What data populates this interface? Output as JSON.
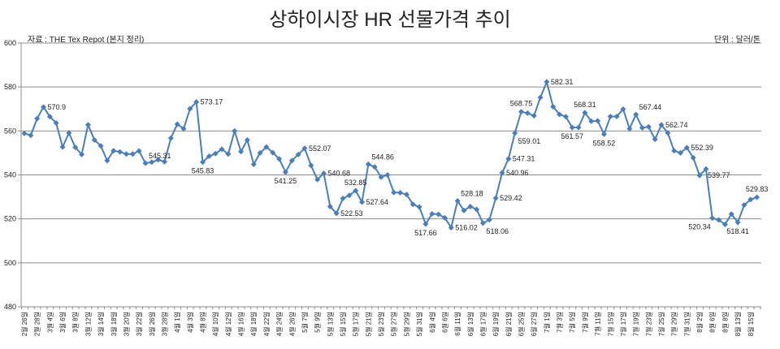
{
  "chart_data": {
    "type": "line",
    "title": "상하이시장 HR 선물가격 추이",
    "source": "자료 : THE Tex Repot (본지 정리)",
    "unit": "단위 : 달러/톤",
    "xlabel": "",
    "ylabel": "",
    "ylim": [
      480,
      600
    ],
    "yticks": [
      "480",
      "500",
      "520",
      "540",
      "560",
      "580",
      "600"
    ],
    "grid": true,
    "series_color": "#4a7ebb",
    "x_tick_labels": [
      "2월 26일",
      "2월 28일",
      "3월 4일",
      "3월 6일",
      "3월 8일",
      "3월 12일",
      "3월 14일",
      "3월 18일",
      "3월 20일",
      "3월 22일",
      "3월 26일",
      "3월 28일",
      "4월 1일",
      "4월 3일",
      "4월 8일",
      "4월 10일",
      "4월 12일",
      "4월 16일",
      "4월 18일",
      "4월 22일",
      "4월 24일",
      "4월 26일",
      "5월 7일",
      "5월 9일",
      "5월 13일",
      "5월 15일",
      "5월 17일",
      "5월 21일",
      "5월 23일",
      "5월 27일",
      "5월 29일",
      "5월 31일",
      "6월 4일",
      "6월 6일",
      "6월 11일",
      "6월 13일",
      "6월 17일",
      "6월 19일",
      "6월 21일",
      "6월 25일",
      "6월 27일",
      "7월 1일",
      "7월 3일",
      "7월 5일",
      "7월 9일",
      "7월 11일",
      "7월 15일",
      "7월 17일",
      "7월 19일",
      "7월 23일",
      "7월 25일",
      "7월 29일",
      "7월 31일",
      "8월 2일",
      "8월 6일",
      "8월 8일",
      "8월 13일",
      "8월 15일"
    ],
    "x_tick_every": 2,
    "values": [
      558.9,
      558.0,
      565.6,
      570.9,
      566.5,
      563.6,
      552.7,
      559.1,
      552.5,
      549.3,
      562.8,
      555.9,
      553.2,
      546.5,
      551.0,
      550.5,
      549.5,
      549.5,
      550.9,
      545.31,
      545.8,
      546.9,
      546.0,
      556.7,
      563.1,
      561.0,
      570.1,
      573.17,
      545.83,
      548.5,
      549.7,
      551.7,
      549.5,
      560.0,
      550.6,
      555.9,
      544.8,
      550.0,
      552.7,
      550.1,
      547.3,
      541.25,
      546.5,
      549.3,
      552.07,
      544.3,
      537.9,
      540.68,
      525.6,
      522.53,
      529.3,
      530.7,
      532.85,
      527.64,
      544.86,
      543.6,
      539.0,
      540.0,
      532.0,
      531.9,
      531.1,
      526.6,
      525.4,
      517.66,
      522.3,
      522.1,
      520.5,
      516.02,
      528.18,
      523.8,
      525.6,
      524.3,
      518.06,
      519.6,
      529.42,
      540.96,
      547.31,
      559.01,
      568.75,
      568.1,
      566.9,
      575.2,
      582.31,
      571.0,
      567.5,
      566.5,
      561.57,
      561.6,
      568.31,
      564.4,
      564.6,
      558.52,
      566.6,
      566.6,
      569.9,
      561.0,
      567.44,
      561.4,
      561.9,
      556.2,
      562.74,
      559.1,
      551.0,
      550.0,
      552.39,
      547.8,
      539.77,
      542.7,
      520.34,
      519.5,
      517.5,
      522.2,
      518.41,
      526.3,
      528.8,
      529.83
    ],
    "data_labels": [
      {
        "index": 3,
        "text": "570.9",
        "pos": "right"
      },
      {
        "index": 19,
        "text": "545.31",
        "pos": "above-right"
      },
      {
        "index": 27,
        "text": "573.17",
        "pos": "right"
      },
      {
        "index": 28,
        "text": "545.83",
        "pos": "below"
      },
      {
        "index": 41,
        "text": "541.25",
        "pos": "below"
      },
      {
        "index": 44,
        "text": "552.07",
        "pos": "right"
      },
      {
        "index": 47,
        "text": "540.68",
        "pos": "right"
      },
      {
        "index": 49,
        "text": "522.53",
        "pos": "right"
      },
      {
        "index": 52,
        "text": "532.85",
        "pos": "above"
      },
      {
        "index": 53,
        "text": "527.64",
        "pos": "right"
      },
      {
        "index": 54,
        "text": "544.86",
        "pos": "above-right"
      },
      {
        "index": 63,
        "text": "517.66",
        "pos": "below"
      },
      {
        "index": 67,
        "text": "516.02",
        "pos": "right"
      },
      {
        "index": 68,
        "text": "528.18",
        "pos": "above-right"
      },
      {
        "index": 72,
        "text": "518.06",
        "pos": "below-right"
      },
      {
        "index": 74,
        "text": "529.42",
        "pos": "right"
      },
      {
        "index": 75,
        "text": "540.96",
        "pos": "right"
      },
      {
        "index": 76,
        "text": "547.31",
        "pos": "right"
      },
      {
        "index": 77,
        "text": "559.01",
        "pos": "below-right"
      },
      {
        "index": 78,
        "text": "568.75",
        "pos": "above"
      },
      {
        "index": 82,
        "text": "582.31",
        "pos": "right"
      },
      {
        "index": 86,
        "text": "561.57",
        "pos": "below"
      },
      {
        "index": 88,
        "text": "568.31",
        "pos": "above"
      },
      {
        "index": 91,
        "text": "558.52",
        "pos": "below"
      },
      {
        "index": 96,
        "text": "567.44",
        "pos": "above-right"
      },
      {
        "index": 100,
        "text": "562.74",
        "pos": "right"
      },
      {
        "index": 104,
        "text": "552.39",
        "pos": "right"
      },
      {
        "index": 106,
        "text": "539.77",
        "pos": "right-far"
      },
      {
        "index": 108,
        "text": "520.34",
        "pos": "below-left"
      },
      {
        "index": 112,
        "text": "518.41",
        "pos": "below"
      },
      {
        "index": 115,
        "text": "529.83",
        "pos": "above"
      }
    ]
  }
}
